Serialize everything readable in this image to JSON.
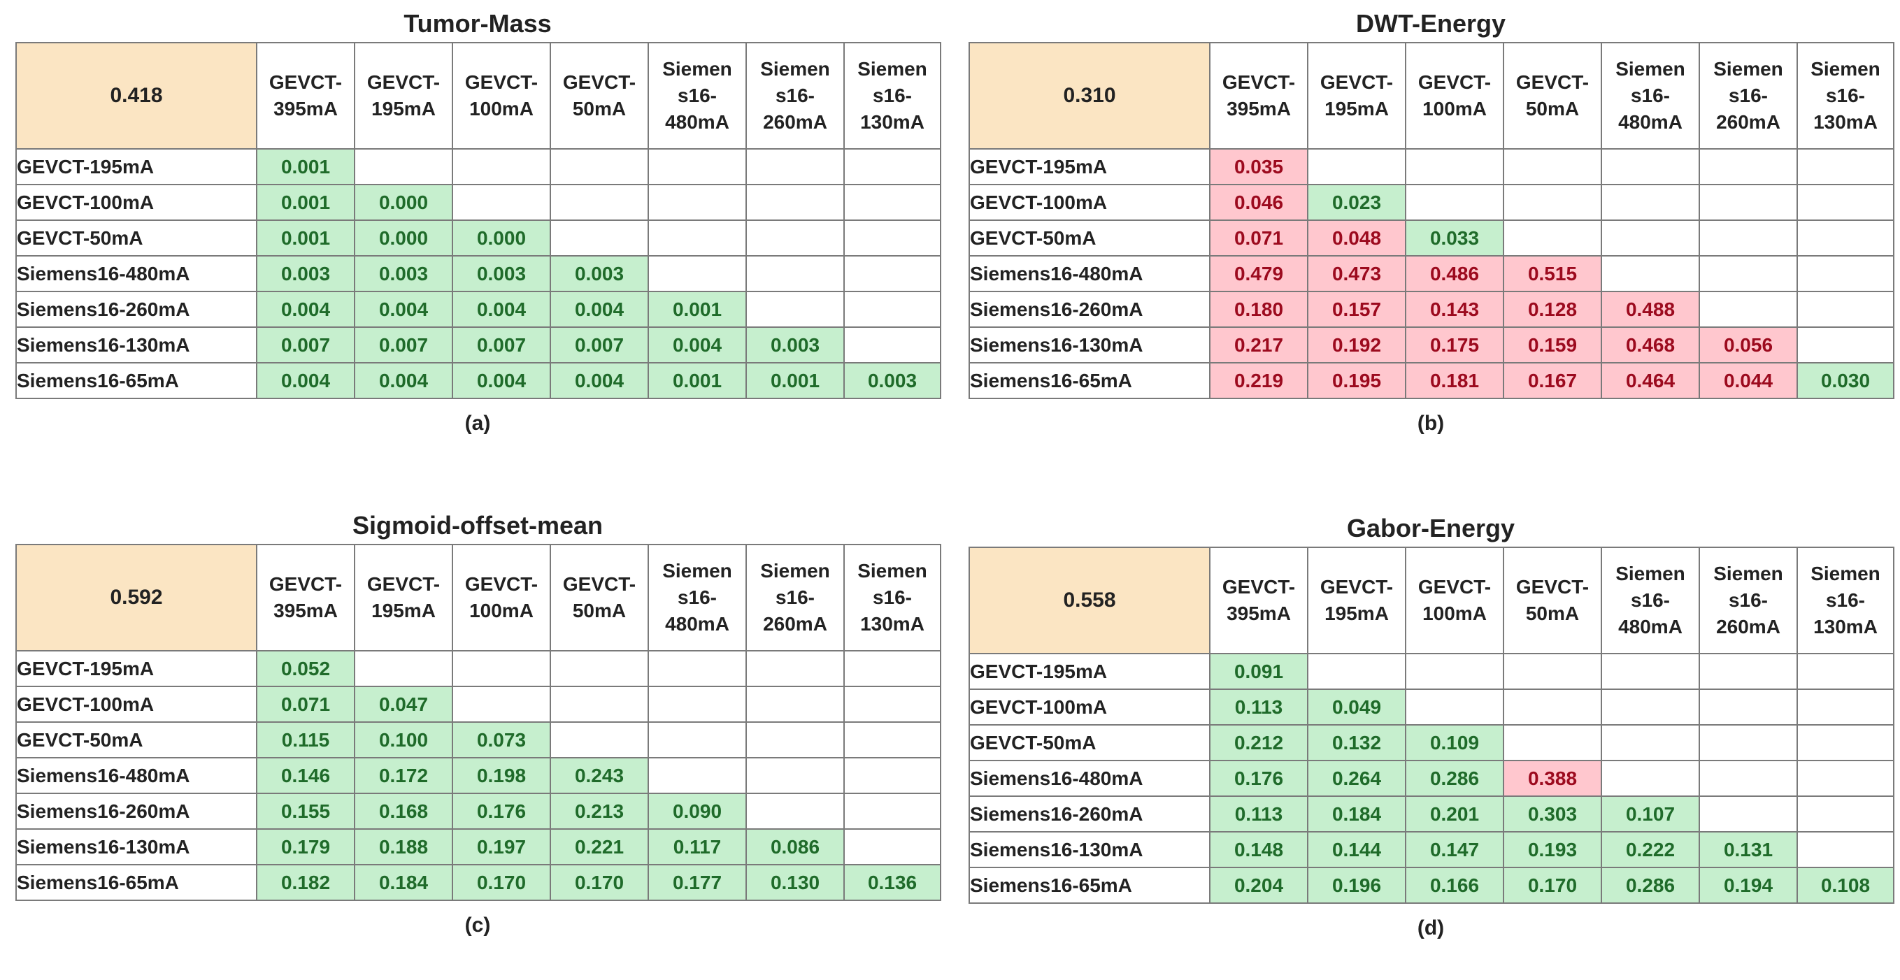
{
  "col_headers": [
    [
      "GEVCT-",
      "395mA"
    ],
    [
      "GEVCT-",
      "195mA"
    ],
    [
      "GEVCT-",
      "100mA"
    ],
    [
      "GEVCT-",
      "50mA"
    ],
    [
      "Siemen",
      "s16-",
      "480mA"
    ],
    [
      "Siemen",
      "s16-",
      "260mA"
    ],
    [
      "Siemen",
      "s16-",
      "130mA"
    ]
  ],
  "row_headers": [
    "GEVCT-195mA",
    "GEVCT-100mA",
    "GEVCT-50mA",
    "Siemens16-480mA",
    "Siemens16-260mA",
    "Siemens16-130mA",
    "Siemens16-65mA"
  ],
  "colors": {
    "green_bg": "#c6efce",
    "green_text": "#1f6b2a",
    "red_bg": "#ffc7ce",
    "red_text": "#9c0a1e",
    "corner_bg": "#fbe5c3"
  },
  "panels": [
    {
      "title": "Tumor-Mass",
      "corner": "0.418",
      "caption": "(a)",
      "rows": [
        [
          [
            "0.001",
            "g"
          ]
        ],
        [
          [
            "0.001",
            "g"
          ],
          [
            "0.000",
            "g"
          ]
        ],
        [
          [
            "0.001",
            "g"
          ],
          [
            "0.000",
            "g"
          ],
          [
            "0.000",
            "g"
          ]
        ],
        [
          [
            "0.003",
            "g"
          ],
          [
            "0.003",
            "g"
          ],
          [
            "0.003",
            "g"
          ],
          [
            "0.003",
            "g"
          ]
        ],
        [
          [
            "0.004",
            "g"
          ],
          [
            "0.004",
            "g"
          ],
          [
            "0.004",
            "g"
          ],
          [
            "0.004",
            "g"
          ],
          [
            "0.001",
            "g"
          ]
        ],
        [
          [
            "0.007",
            "g"
          ],
          [
            "0.007",
            "g"
          ],
          [
            "0.007",
            "g"
          ],
          [
            "0.007",
            "g"
          ],
          [
            "0.004",
            "g"
          ],
          [
            "0.003",
            "g"
          ]
        ],
        [
          [
            "0.004",
            "g"
          ],
          [
            "0.004",
            "g"
          ],
          [
            "0.004",
            "g"
          ],
          [
            "0.004",
            "g"
          ],
          [
            "0.001",
            "g"
          ],
          [
            "0.001",
            "g"
          ],
          [
            "0.003",
            "g"
          ]
        ]
      ]
    },
    {
      "title": "DWT-Energy",
      "corner": "0.310",
      "caption": "(b)",
      "rows": [
        [
          [
            "0.035",
            "r"
          ]
        ],
        [
          [
            "0.046",
            "r"
          ],
          [
            "0.023",
            "g"
          ]
        ],
        [
          [
            "0.071",
            "r"
          ],
          [
            "0.048",
            "r"
          ],
          [
            "0.033",
            "g"
          ]
        ],
        [
          [
            "0.479",
            "r"
          ],
          [
            "0.473",
            "r"
          ],
          [
            "0.486",
            "r"
          ],
          [
            "0.515",
            "r"
          ]
        ],
        [
          [
            "0.180",
            "r"
          ],
          [
            "0.157",
            "r"
          ],
          [
            "0.143",
            "r"
          ],
          [
            "0.128",
            "r"
          ],
          [
            "0.488",
            "r"
          ]
        ],
        [
          [
            "0.217",
            "r"
          ],
          [
            "0.192",
            "r"
          ],
          [
            "0.175",
            "r"
          ],
          [
            "0.159",
            "r"
          ],
          [
            "0.468",
            "r"
          ],
          [
            "0.056",
            "r"
          ]
        ],
        [
          [
            "0.219",
            "r"
          ],
          [
            "0.195",
            "r"
          ],
          [
            "0.181",
            "r"
          ],
          [
            "0.167",
            "r"
          ],
          [
            "0.464",
            "r"
          ],
          [
            "0.044",
            "r"
          ],
          [
            "0.030",
            "g"
          ]
        ]
      ]
    },
    {
      "title": "Sigmoid-offset-mean",
      "corner": "0.592",
      "caption": "(c)",
      "rows": [
        [
          [
            "0.052",
            "g"
          ]
        ],
        [
          [
            "0.071",
            "g"
          ],
          [
            "0.047",
            "g"
          ]
        ],
        [
          [
            "0.115",
            "g"
          ],
          [
            "0.100",
            "g"
          ],
          [
            "0.073",
            "g"
          ]
        ],
        [
          [
            "0.146",
            "g"
          ],
          [
            "0.172",
            "g"
          ],
          [
            "0.198",
            "g"
          ],
          [
            "0.243",
            "g"
          ]
        ],
        [
          [
            "0.155",
            "g"
          ],
          [
            "0.168",
            "g"
          ],
          [
            "0.176",
            "g"
          ],
          [
            "0.213",
            "g"
          ],
          [
            "0.090",
            "g"
          ]
        ],
        [
          [
            "0.179",
            "g"
          ],
          [
            "0.188",
            "g"
          ],
          [
            "0.197",
            "g"
          ],
          [
            "0.221",
            "g"
          ],
          [
            "0.117",
            "g"
          ],
          [
            "0.086",
            "g"
          ]
        ],
        [
          [
            "0.182",
            "g"
          ],
          [
            "0.184",
            "g"
          ],
          [
            "0.170",
            "g"
          ],
          [
            "0.170",
            "g"
          ],
          [
            "0.177",
            "g"
          ],
          [
            "0.130",
            "g"
          ],
          [
            "0.136",
            "g"
          ]
        ]
      ]
    },
    {
      "title": "Gabor-Energy",
      "corner": "0.558",
      "caption": "(d)",
      "rows": [
        [
          [
            "0.091",
            "g"
          ]
        ],
        [
          [
            "0.113",
            "g"
          ],
          [
            "0.049",
            "g"
          ]
        ],
        [
          [
            "0.212",
            "g"
          ],
          [
            "0.132",
            "g"
          ],
          [
            "0.109",
            "g"
          ]
        ],
        [
          [
            "0.176",
            "g"
          ],
          [
            "0.264",
            "g"
          ],
          [
            "0.286",
            "g"
          ],
          [
            "0.388",
            "r"
          ]
        ],
        [
          [
            "0.113",
            "g"
          ],
          [
            "0.184",
            "g"
          ],
          [
            "0.201",
            "g"
          ],
          [
            "0.303",
            "g"
          ],
          [
            "0.107",
            "g"
          ]
        ],
        [
          [
            "0.148",
            "g"
          ],
          [
            "0.144",
            "g"
          ],
          [
            "0.147",
            "g"
          ],
          [
            "0.193",
            "g"
          ],
          [
            "0.222",
            "g"
          ],
          [
            "0.131",
            "g"
          ]
        ],
        [
          [
            "0.204",
            "g"
          ],
          [
            "0.196",
            "g"
          ],
          [
            "0.166",
            "g"
          ],
          [
            "0.170",
            "g"
          ],
          [
            "0.286",
            "g"
          ],
          [
            "0.194",
            "g"
          ],
          [
            "0.108",
            "g"
          ]
        ]
      ]
    }
  ]
}
